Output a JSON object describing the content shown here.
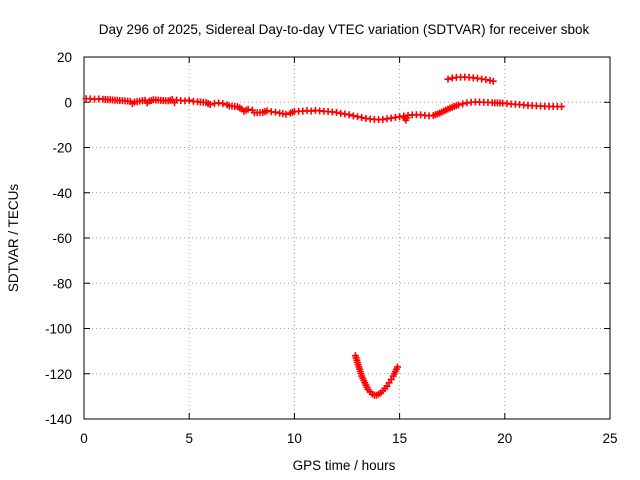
{
  "chart_data": {
    "type": "scatter",
    "title": "Day 296 of 2025, Sidereal Day-to-day VTEC variation (SDTVAR) for receiver sbok",
    "xlabel": "GPS time / hours",
    "ylabel": "SDTVAR / TECUs",
    "xlim": [
      0,
      25
    ],
    "ylim": [
      -140,
      20
    ],
    "xticks": [
      0,
      5,
      10,
      15,
      20,
      25
    ],
    "yticks": [
      20,
      0,
      -20,
      -40,
      -60,
      -80,
      -100,
      -120,
      -140
    ],
    "grid": true,
    "series": [
      {
        "name": "main-track",
        "color": "#ff0000",
        "marker": "plus",
        "points": [
          [
            0.1,
            1.6
          ],
          [
            0.3,
            1.5
          ],
          [
            0.5,
            1.4
          ],
          [
            0.7,
            1.5
          ],
          [
            0.9,
            1.3
          ],
          [
            1.7,
            0.8
          ],
          [
            2.2,
            0.4
          ],
          [
            2.3,
            -0.6
          ],
          [
            2.4,
            0.1
          ],
          [
            2.9,
            0.9
          ],
          [
            3.0,
            -0.3
          ],
          [
            3.1,
            0.5
          ],
          [
            3.3,
            1.1
          ],
          [
            4.0,
            0.6
          ],
          [
            4.2,
            1.2
          ],
          [
            4.3,
            -0.2
          ],
          [
            4.4,
            1.0
          ],
          [
            4.6,
            0.8
          ],
          [
            4.8,
            0.6
          ],
          [
            5.0,
            0.9
          ],
          [
            5.2,
            0.4
          ],
          [
            5.4,
            0.2
          ],
          [
            5.8,
            -0.1
          ],
          [
            6.0,
            -1.0
          ],
          [
            6.2,
            -0.5
          ],
          [
            6.4,
            -0.3
          ],
          [
            6.6,
            -0.6
          ],
          [
            6.8,
            -1.1
          ],
          [
            6.9,
            -1.6
          ],
          [
            7.3,
            -2.0
          ],
          [
            7.5,
            -3.0
          ],
          [
            7.6,
            -4.0
          ],
          [
            7.8,
            -3.1
          ],
          [
            8.0,
            -3.5
          ],
          [
            8.1,
            -4.7
          ],
          [
            8.5,
            -4.5
          ],
          [
            8.7,
            -3.8
          ],
          [
            8.9,
            -4.2
          ],
          [
            9.1,
            -4.4
          ],
          [
            9.3,
            -4.8
          ],
          [
            9.6,
            -5.3
          ],
          [
            9.8,
            -4.8
          ],
          [
            10.0,
            -4.1
          ],
          [
            10.2,
            -4.0
          ],
          [
            10.4,
            -3.9
          ],
          [
            10.6,
            -3.7
          ],
          [
            10.8,
            -3.9
          ],
          [
            11.0,
            -3.6
          ],
          [
            11.2,
            -3.8
          ],
          [
            11.4,
            -4.0
          ],
          [
            11.6,
            -4.1
          ],
          [
            11.8,
            -4.3
          ],
          [
            12.0,
            -4.5
          ],
          [
            12.2,
            -4.9
          ],
          [
            12.4,
            -5.2
          ],
          [
            12.6,
            -5.5
          ],
          [
            12.8,
            -6.0
          ],
          [
            13.0,
            -6.4
          ],
          [
            13.2,
            -6.8
          ],
          [
            13.4,
            -7.1
          ],
          [
            13.6,
            -7.4
          ],
          [
            13.8,
            -7.6
          ],
          [
            14.0,
            -7.7
          ],
          [
            14.2,
            -7.6
          ],
          [
            14.4,
            -7.3
          ],
          [
            14.6,
            -7.0
          ],
          [
            14.8,
            -6.7
          ],
          [
            15.0,
            -6.4
          ],
          [
            15.2,
            -6.1
          ],
          [
            15.3,
            -7.9
          ],
          [
            15.4,
            -5.8
          ],
          [
            15.6,
            -5.6
          ],
          [
            15.8,
            -5.5
          ],
          [
            16.0,
            -5.6
          ],
          [
            16.2,
            -5.8
          ],
          [
            16.4,
            -6.0
          ],
          [
            16.6,
            -5.9
          ],
          [
            16.8,
            -5.2
          ],
          [
            17.0,
            -4.4
          ],
          [
            17.2,
            -3.5
          ],
          [
            17.4,
            -2.6
          ],
          [
            17.6,
            -1.8
          ],
          [
            17.8,
            -1.2
          ],
          [
            18.0,
            -0.7
          ],
          [
            18.2,
            -0.3
          ],
          [
            18.4,
            0.0
          ],
          [
            18.6,
            0.1
          ],
          [
            18.8,
            0.1
          ],
          [
            19.0,
            0.0
          ],
          [
            19.2,
            -0.1
          ],
          [
            19.4,
            -0.2
          ],
          [
            19.9,
            -0.4
          ],
          [
            20.1,
            -0.6
          ],
          [
            20.3,
            -0.8
          ],
          [
            20.5,
            -0.9
          ],
          [
            20.7,
            -1.0
          ],
          [
            20.9,
            -1.2
          ],
          [
            21.1,
            -1.4
          ],
          [
            21.3,
            -1.5
          ],
          [
            21.5,
            -1.6
          ],
          [
            21.7,
            -1.7
          ],
          [
            21.9,
            -1.8
          ],
          [
            22.1,
            -1.8
          ],
          [
            22.3,
            -1.9
          ],
          [
            22.5,
            -1.9
          ],
          [
            22.7,
            -1.9
          ]
        ]
      },
      {
        "name": "upper-arc",
        "color": "#ff0000",
        "marker": "plus",
        "points": [
          [
            17.3,
            10.2
          ],
          [
            17.5,
            10.7
          ],
          [
            17.7,
            11.0
          ],
          [
            17.9,
            11.1
          ],
          [
            18.1,
            11.1
          ],
          [
            18.3,
            11.0
          ],
          [
            18.5,
            10.8
          ],
          [
            18.7,
            10.6
          ],
          [
            18.9,
            10.3
          ],
          [
            19.1,
            10.0
          ],
          [
            19.3,
            9.6
          ],
          [
            19.45,
            9.3
          ]
        ]
      },
      {
        "name": "lower-arc",
        "color": "#ff0000",
        "marker": "plus",
        "points": [
          [
            12.9,
            -112
          ],
          [
            13.0,
            -115
          ],
          [
            13.1,
            -118
          ],
          [
            13.2,
            -121
          ],
          [
            13.3,
            -123
          ],
          [
            13.4,
            -125
          ],
          [
            13.5,
            -127
          ],
          [
            13.6,
            -128
          ],
          [
            13.7,
            -129
          ],
          [
            13.8,
            -129.5
          ],
          [
            13.9,
            -129.5
          ],
          [
            14.0,
            -129
          ],
          [
            14.1,
            -128.5
          ],
          [
            14.2,
            -127.5
          ],
          [
            14.3,
            -126.5
          ],
          [
            14.4,
            -125.5
          ],
          [
            14.5,
            -124
          ],
          [
            14.6,
            -122.5
          ],
          [
            14.7,
            -121
          ],
          [
            14.8,
            -119
          ],
          [
            14.9,
            -117
          ]
        ]
      }
    ]
  }
}
